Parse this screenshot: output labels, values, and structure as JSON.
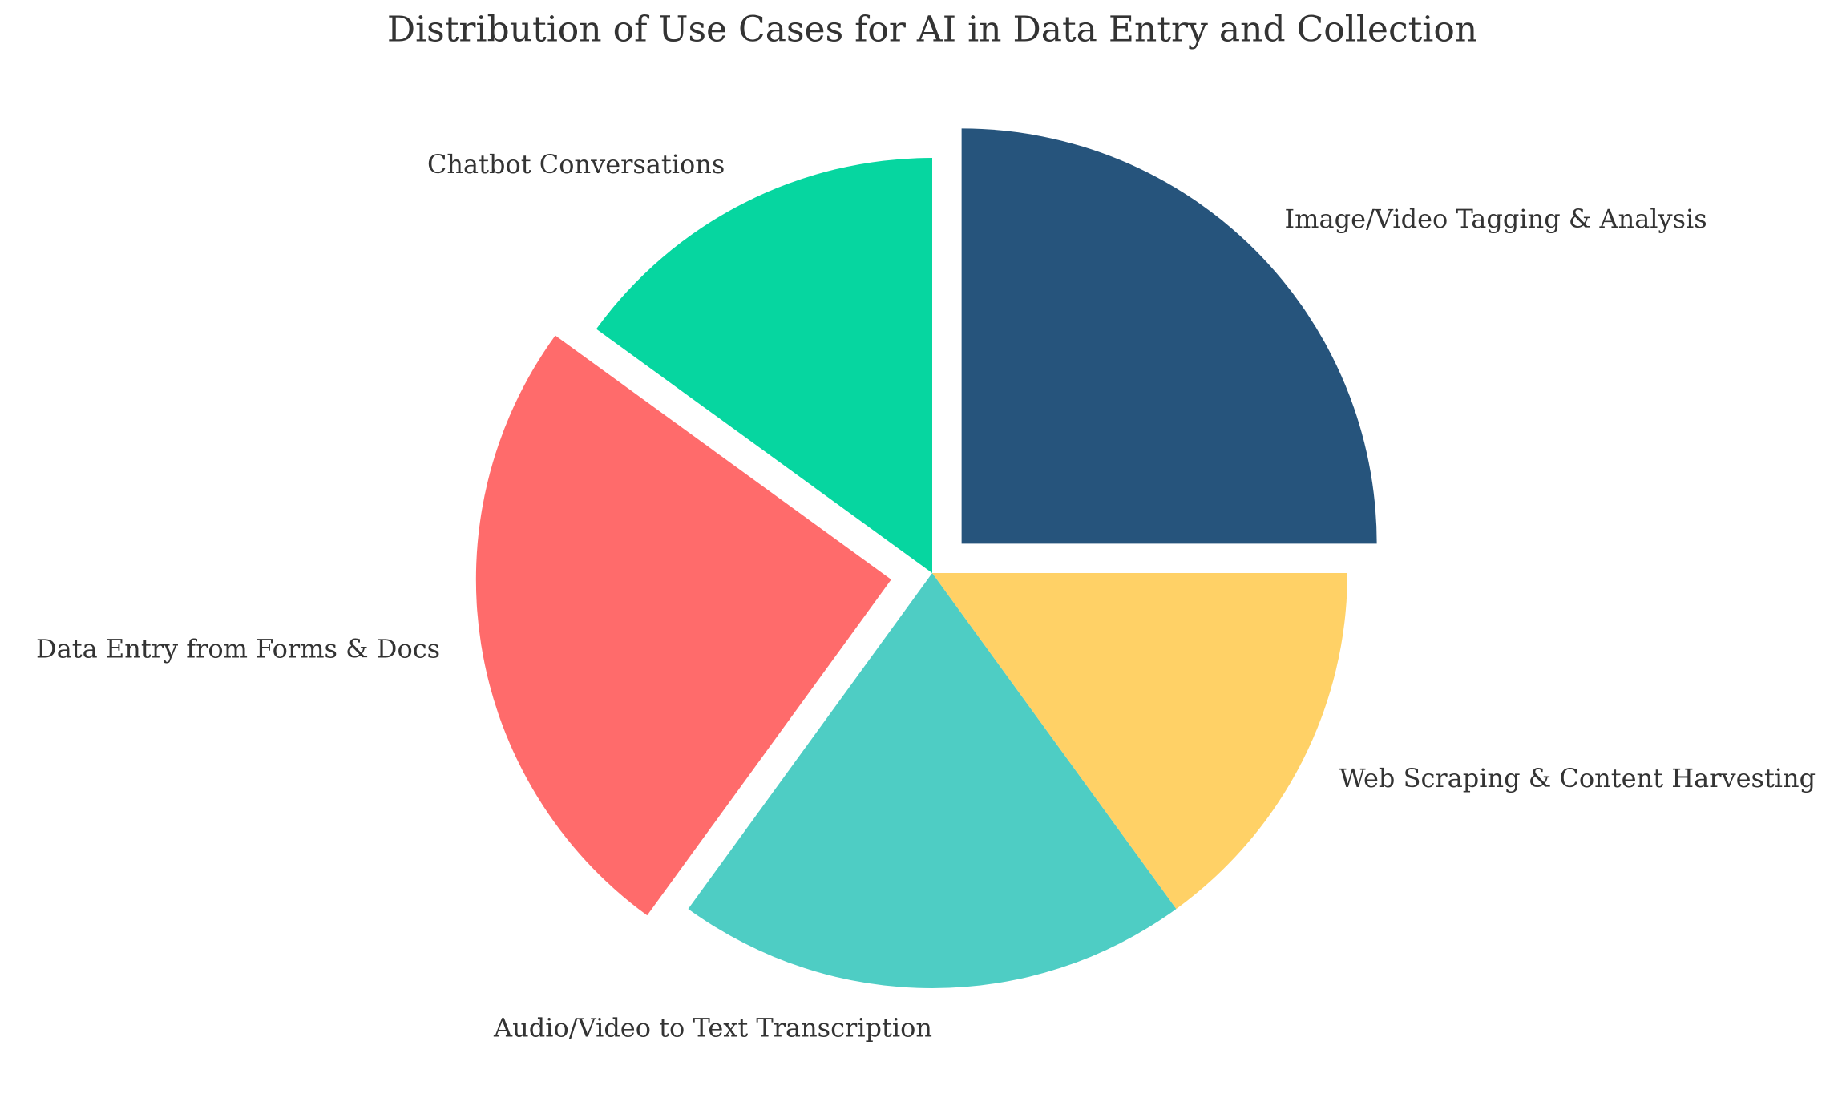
{
  "chart_data": {
    "type": "pie",
    "title": "Distribution of Use Cases for AI in Data Entry and Collection",
    "categories": [
      "Chatbot Conversations",
      "Data Entry from Forms & Docs",
      "Audio/Video to Text Transcription",
      "Web Scraping & Content Harvesting",
      "Image/Video Tagging & Analysis"
    ],
    "values": [
      15,
      25,
      20,
      15,
      25
    ],
    "colors": [
      "#06d6a0",
      "#ff6b6b",
      "#4ecdc4",
      "#ffd166",
      "#26547c"
    ],
    "explode": [
      0,
      0.1,
      0,
      0,
      0.1
    ]
  }
}
